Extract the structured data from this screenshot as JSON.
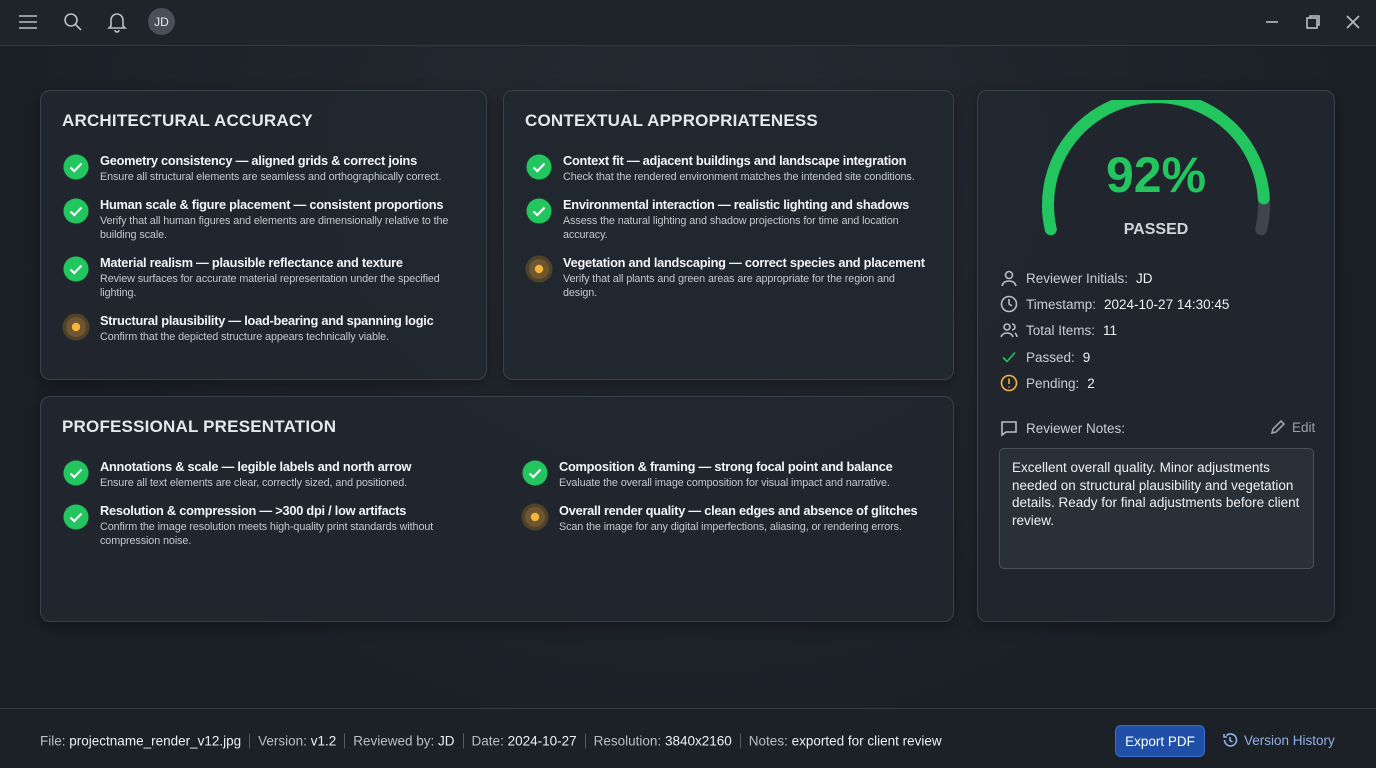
{
  "topbar": {
    "avatar": "JD"
  },
  "sections": [
    {
      "title": "ARCHITECTURAL ACCURACY",
      "items": [
        {
          "title": "Geometry consistency — aligned grids & correct joins",
          "desc": "Ensure all structural elements are seamless and orthographically correct."
        },
        {
          "title": "Human scale & figure placement — consistent proportions",
          "desc": "Verify that all human figures and elements are dimensionally relative to the building scale."
        },
        {
          "title": "Material realism — plausible reflectance and texture",
          "desc": "Review surfaces for accurate material representation under the specified lighting."
        },
        {
          "title": "Structural plausibility — load-bearing and spanning logic",
          "desc": "Confirm that the depicted structure appears technically viable."
        }
      ]
    },
    {
      "title": "CONTEXTUAL APPROPRIATENESS",
      "items": [
        {
          "title": "Context fit — adjacent buildings and landscape integration",
          "desc": "Check that the rendered environment matches the intended site conditions."
        },
        {
          "title": "Environmental interaction — realistic lighting and shadows",
          "desc": "Assess the natural lighting and shadow projections for time and location accuracy."
        },
        {
          "title": "Vegetation and landscaping — correct species and placement",
          "desc": "Verify that all plants and green areas are appropriate for the region and design."
        }
      ]
    },
    {
      "title": "PROFESSIONAL PRESENTATION",
      "items": [
        {
          "title": "Annotations & scale — legible labels and north arrow",
          "desc": "Ensure all text elements are clear, correctly sized, and positioned."
        },
        {
          "title": "Resolution & compression — >300 dpi / low artifacts",
          "desc": "Confirm the image resolution meets high-quality print standards without compression noise."
        },
        {
          "title": "Composition & framing — strong focal point and balance",
          "desc": "Evaluate the overall image composition for visual impact and narrative."
        },
        {
          "title": "Overall render quality — clean edges and absence of glitches",
          "desc": "Scan the image for any digital imperfections, aliasing, or rendering errors."
        }
      ]
    }
  ],
  "summary": {
    "score": {
      "value": 92,
      "label": "92%"
    },
    "status": "PASSED",
    "fields": [
      {
        "label": "Reviewer Initials:",
        "value": "JD"
      },
      {
        "label": "Timestamp:",
        "value": "2024-10-27 14:30:45"
      },
      {
        "label": "Total Items:",
        "value": 11
      },
      {
        "label": "Passed:",
        "value": 9
      },
      {
        "label": "Pending:",
        "value": 2
      }
    ],
    "notes_label": "Reviewer Notes:",
    "edit": "Edit",
    "notes": "Excellent overall quality. Minor adjustments needed on structural plausibility and vegetation details. Ready for final adjustments before client review."
  },
  "footer": {
    "fields": [
      {
        "label": "File:",
        "value": "projectname_render_v12.jpg"
      },
      {
        "label": "Version:",
        "value": "v1.2"
      },
      {
        "label": "Reviewed by:",
        "value": "JD"
      },
      {
        "label": "Date:",
        "value": "2024-10-27"
      },
      {
        "label": "Resolution:",
        "value": "3840x2160"
      },
      {
        "label": "Notes:",
        "value": "exported for client review"
      }
    ],
    "export": "Export PDF",
    "history": "Version History"
  }
}
